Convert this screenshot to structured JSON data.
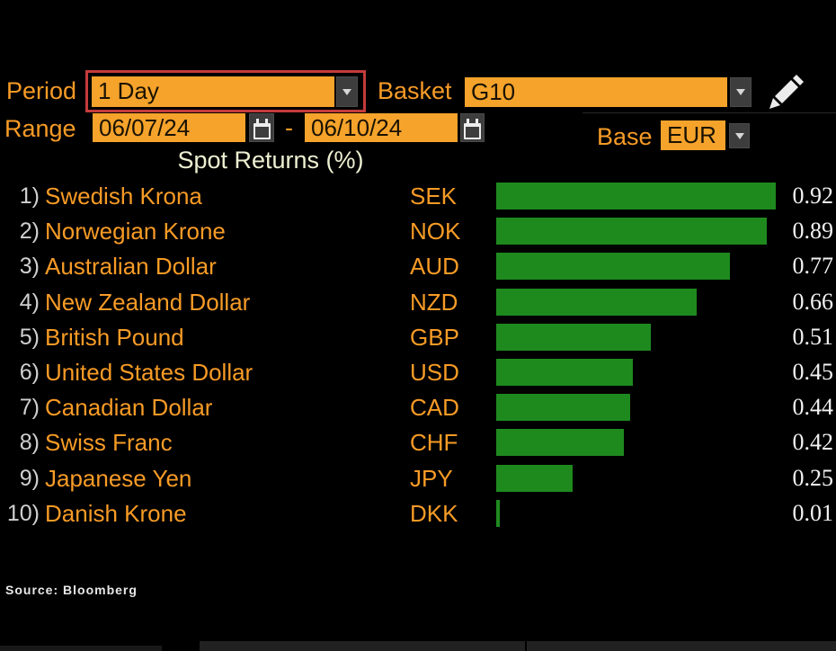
{
  "header": {
    "period": {
      "label": "Period",
      "value": "1 Day"
    },
    "basket": {
      "label": "Basket",
      "value": "G10"
    },
    "range": {
      "label": "Range",
      "start": "06/07/24",
      "dash": "-",
      "end": "06/10/24"
    },
    "base": {
      "label": "Base",
      "value": "EUR"
    }
  },
  "chart_data": {
    "type": "bar",
    "orientation": "horizontal",
    "title": "Spot Returns (%)",
    "xlabel": "",
    "ylabel": "",
    "value_axis_min": 0,
    "value_axis_max": 0.92,
    "grid": false,
    "legend": "none",
    "bar_color": "#1e8a1e",
    "ranks": [
      "1)",
      "2)",
      "3)",
      "4)",
      "5)",
      "6)",
      "7)",
      "8)",
      "9)",
      "10)"
    ],
    "categories": [
      "Swedish Krona",
      "Norwegian Krone",
      "Australian Dollar",
      "New Zealand Dollar",
      "British Pound",
      "United States Dollar",
      "Canadian Dollar",
      "Swiss Franc",
      "Japanese Yen",
      "Danish Krone"
    ],
    "codes": [
      "SEK",
      "NOK",
      "AUD",
      "NZD",
      "GBP",
      "USD",
      "CAD",
      "CHF",
      "JPY",
      "DKK"
    ],
    "values": [
      0.92,
      0.89,
      0.77,
      0.66,
      0.51,
      0.45,
      0.44,
      0.42,
      0.25,
      0.01
    ],
    "value_labels": [
      "0.92",
      "0.89",
      "0.77",
      "0.66",
      "0.51",
      "0.45",
      "0.44",
      "0.42",
      "0.25",
      "0.01"
    ]
  },
  "footer": {
    "source": "Source: Bloomberg"
  },
  "colors": {
    "background": "#000000",
    "field_orange": "#f5a32b",
    "label_orange": "#f79b26",
    "highlight_red": "#c43b3b",
    "bar_green": "#1e8a1e",
    "title_cream": "#eef0d2",
    "value_white": "#f2f2f2"
  },
  "icons": {
    "dropdown": "chevron-down-icon",
    "calendar": "calendar-icon",
    "edit": "pencil-icon"
  }
}
